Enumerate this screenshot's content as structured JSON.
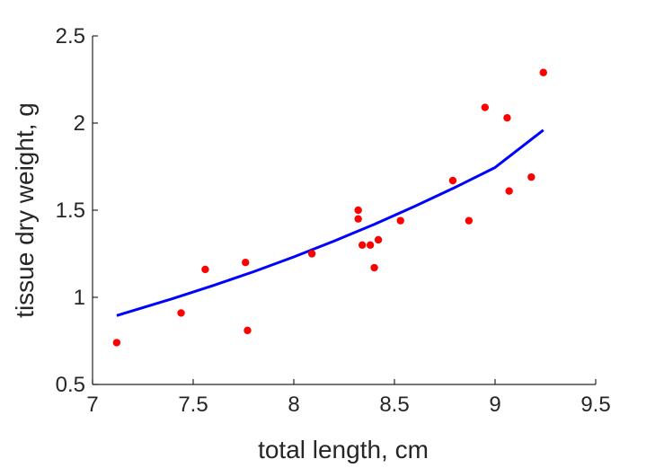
{
  "chart_data": {
    "type": "scatter",
    "title": "",
    "xlabel": "total length, cm",
    "ylabel": "tissue dry weight, g",
    "xlim": [
      7,
      9.5
    ],
    "ylim": [
      0.5,
      2.5
    ],
    "xticks": [
      7,
      7.5,
      8,
      8.5,
      9,
      9.5
    ],
    "xtick_labels": [
      "7",
      "7.5",
      "8",
      "8.5",
      "9",
      "9.5"
    ],
    "yticks": [
      0.5,
      1,
      1.5,
      2,
      2.5
    ],
    "ytick_labels": [
      "0.5",
      "1",
      "1.5",
      "2",
      "2.5"
    ],
    "grid": false,
    "series": [
      {
        "kind": "scatter",
        "color": "#ff0000",
        "x": [
          7.12,
          7.44,
          7.56,
          7.76,
          7.77,
          8.09,
          8.32,
          8.32,
          8.34,
          8.38,
          8.4,
          8.42,
          8.53,
          8.79,
          8.87,
          8.95,
          9.06,
          9.07,
          9.18,
          9.24
        ],
        "y": [
          0.74,
          0.91,
          1.16,
          1.2,
          0.81,
          1.25,
          1.5,
          1.45,
          1.3,
          1.3,
          1.17,
          1.33,
          1.44,
          1.67,
          1.44,
          2.09,
          2.03,
          1.61,
          1.69,
          2.29
        ]
      },
      {
        "kind": "line",
        "color": "#0000ff",
        "x": [
          7.12,
          7.4,
          7.6,
          7.8,
          8.0,
          8.2,
          8.4,
          8.6,
          8.8,
          9.0,
          9.24
        ],
        "y": [
          0.895,
          0.993,
          1.068,
          1.147,
          1.232,
          1.323,
          1.419,
          1.522,
          1.63,
          1.745,
          1.96
        ]
      }
    ]
  }
}
